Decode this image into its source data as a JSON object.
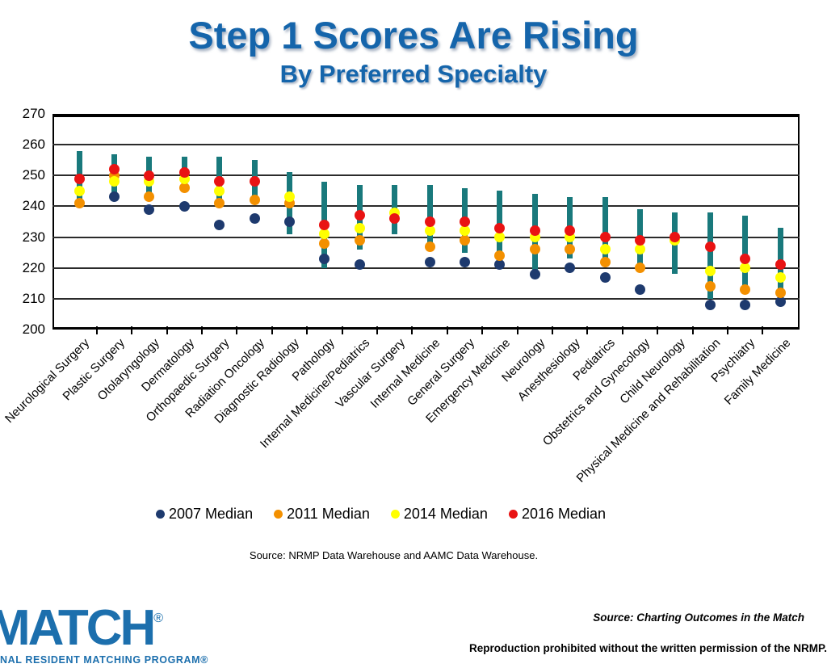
{
  "title": {
    "line1": "Step 1 Scores Are Rising",
    "line2": "By Preferred Specialty"
  },
  "chart_data": {
    "type": "scatter",
    "title": "Step 1 Scores Are Rising By Preferred Specialty",
    "xlabel": "",
    "ylabel": "",
    "ylim": [
      200,
      270
    ],
    "ytick_step": 10,
    "yticks": [
      200,
      210,
      220,
      230,
      240,
      250,
      260,
      270
    ],
    "grid": true,
    "legend_position": "bottom",
    "categories": [
      "Neurological Surgery",
      "Plastic Surgery",
      "Otolaryngology",
      "Dermatology",
      "Orthopaedic Surgery",
      "Radiation Oncology",
      "Diagnostic Radiology",
      "Pathology",
      "Internal Medicine/Pediatrics",
      "Vascular Surgery",
      "Internal Medicine",
      "General Surgery",
      "Emergency Medicine",
      "Neurology",
      "Anesthesiology",
      "Pediatrics",
      "Obstetrics and Gynecology",
      "Child Neurology",
      "Physical Medicine and Rehabilitation",
      "Psychiatry",
      "Family Medicine"
    ],
    "series": [
      {
        "name": "2007 Median",
        "color": "#1E3A6E",
        "values": [
          null,
          243,
          239,
          240,
          234,
          236,
          235,
          223,
          221,
          null,
          222,
          222,
          221,
          218,
          220,
          217,
          213,
          null,
          208,
          208,
          209
        ]
      },
      {
        "name": "2011 Median",
        "color": "#F39000",
        "values": [
          241,
          250,
          243,
          246,
          241,
          242,
          241,
          228,
          229,
          null,
          227,
          229,
          224,
          226,
          226,
          222,
          220,
          null,
          214,
          213,
          212
        ]
      },
      {
        "name": "2014 Median",
        "color": "#FFFF00",
        "values": [
          245,
          248,
          248,
          249,
          245,
          null,
          243,
          231,
          233,
          238,
          232,
          232,
          230,
          230,
          230,
          226,
          226,
          229,
          219,
          220,
          217
        ]
      },
      {
        "name": "2016 Median",
        "color": "#E91313",
        "values": [
          249,
          252,
          250,
          251,
          248,
          248,
          null,
          234,
          237,
          236,
          235,
          235,
          233,
          232,
          232,
          230,
          229,
          230,
          227,
          223,
          221
        ]
      }
    ],
    "ranges": {
      "color": "#19797C",
      "low": [
        241,
        244,
        242,
        245,
        240,
        241,
        231,
        220,
        226,
        231,
        227,
        225,
        220,
        219,
        223,
        221,
        219,
        218,
        210,
        212,
        211
      ],
      "high": [
        258,
        257,
        256,
        256,
        256,
        255,
        251,
        248,
        247,
        247,
        247,
        246,
        245,
        244,
        243,
        243,
        239,
        238,
        238,
        237,
        233
      ]
    }
  },
  "legend": {
    "items": [
      {
        "label": "2007 Median",
        "color": "#1E3A6E"
      },
      {
        "label": "2011 Median",
        "color": "#F39000"
      },
      {
        "label": "2014 Median",
        "color": "#FFFF00"
      },
      {
        "label": "2016 Median",
        "color": "#E91313"
      }
    ]
  },
  "source_note": "Source: NRMP Data Warehouse and AAMC Data Warehouse.",
  "footer": {
    "logo_main": "MATCH",
    "logo_reg": "®",
    "logo_sub": "NAL RESIDENT MATCHING PROGRAM®",
    "source_right": "Source: Charting Outcomes in the Match",
    "copyright": "Reproduction prohibited without the written permission of the NRMP."
  },
  "colors": {
    "title_blue": "#1565AB",
    "logo_blue": "#1C6FAD",
    "range_teal": "#19797C",
    "grid_black": "#2b2b2b"
  }
}
